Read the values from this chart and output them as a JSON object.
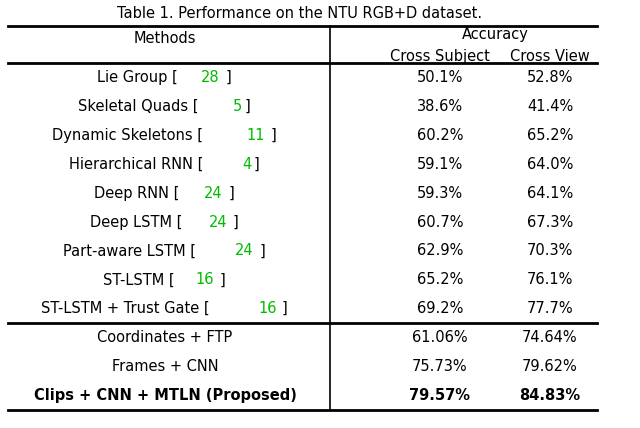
{
  "title": "Table 1. Performance on the NTU RGB+D dataset.",
  "header_col": "Methods",
  "header_accuracy": "Accuracy",
  "header_cross_subject": "Cross Subject",
  "header_cross_view": "Cross View",
  "rows": [
    {
      "method_plain": "Lie Group [",
      "method_cite": "28",
      "method_end": "]",
      "cross_subject": "50.1%",
      "cross_view": "52.8%",
      "bold": false,
      "section": 1
    },
    {
      "method_plain": "Skeletal Quads [",
      "method_cite": "5",
      "method_end": "]",
      "cross_subject": "38.6%",
      "cross_view": "41.4%",
      "bold": false,
      "section": 1
    },
    {
      "method_plain": "Dynamic Skeletons [",
      "method_cite": "11",
      "method_end": "]",
      "cross_subject": "60.2%",
      "cross_view": "65.2%",
      "bold": false,
      "section": 1
    },
    {
      "method_plain": "Hierarchical RNN [",
      "method_cite": "4",
      "method_end": "]",
      "cross_subject": "59.1%",
      "cross_view": "64.0%",
      "bold": false,
      "section": 1
    },
    {
      "method_plain": "Deep RNN [",
      "method_cite": "24",
      "method_end": "]",
      "cross_subject": "59.3%",
      "cross_view": "64.1%",
      "bold": false,
      "section": 1
    },
    {
      "method_plain": "Deep LSTM [",
      "method_cite": "24",
      "method_end": "]",
      "cross_subject": "60.7%",
      "cross_view": "67.3%",
      "bold": false,
      "section": 1
    },
    {
      "method_plain": "Part-aware LSTM [",
      "method_cite": "24",
      "method_end": "]",
      "cross_subject": "62.9%",
      "cross_view": "70.3%",
      "bold": false,
      "section": 1
    },
    {
      "method_plain": "ST-LSTM [",
      "method_cite": "16",
      "method_end": "]",
      "cross_subject": "65.2%",
      "cross_view": "76.1%",
      "bold": false,
      "section": 1
    },
    {
      "method_plain": "ST-LSTM + Trust Gate [",
      "method_cite": "16",
      "method_end": "]",
      "cross_subject": "69.2%",
      "cross_view": "77.7%",
      "bold": false,
      "section": 1
    },
    {
      "method_plain": "Coordinates + FTP",
      "method_cite": "",
      "method_end": "",
      "cross_subject": "61.06%",
      "cross_view": "74.64%",
      "bold": false,
      "section": 2
    },
    {
      "method_plain": "Frames + CNN",
      "method_cite": "",
      "method_end": "",
      "cross_subject": "75.73%",
      "cross_view": "79.62%",
      "bold": false,
      "section": 2
    },
    {
      "method_plain": "Clips + CNN + MTLN (Proposed)",
      "method_cite": "",
      "method_end": "",
      "cross_subject": "79.57%",
      "cross_view": "84.83%",
      "bold": true,
      "section": 2
    }
  ],
  "bg_color": "#ffffff",
  "text_color": "#000000",
  "green_color": "#00bb00",
  "font_size": 10.5,
  "title_font_size": 10.5
}
